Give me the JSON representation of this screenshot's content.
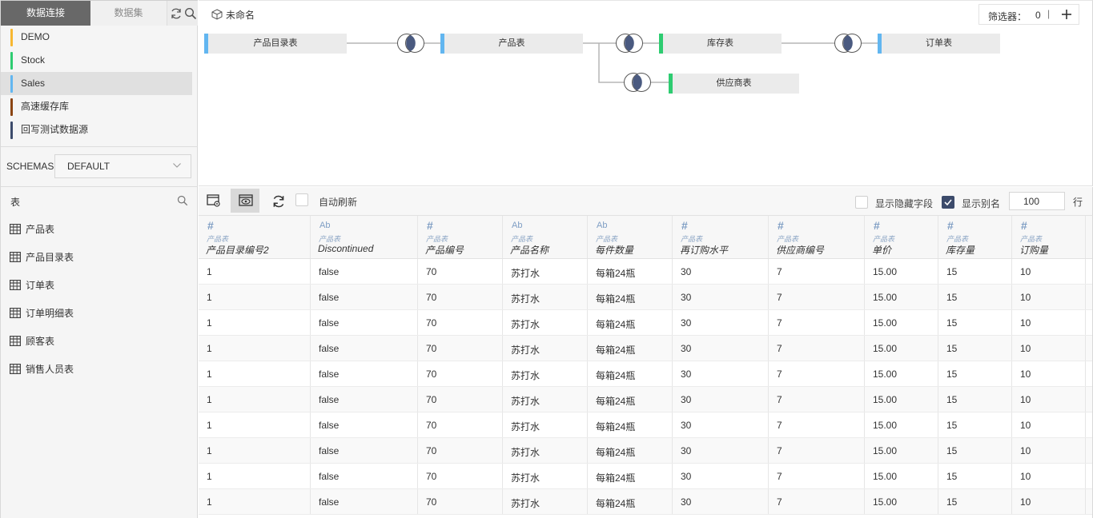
{
  "sidebar": {
    "tabs": [
      "数据连接",
      "数据集"
    ],
    "datasources": [
      {
        "name": "DEMO",
        "color": "#f7b731"
      },
      {
        "name": "Stock",
        "color": "#2ecc71"
      },
      {
        "name": "Sales",
        "color": "#62b6f0"
      },
      {
        "name": "高速缓存库",
        "color": "#8b4513"
      },
      {
        "name": "回写测试数据源",
        "color": "#3c4b6b"
      }
    ],
    "selected_datasource": "Sales",
    "schema_label": "SCHEMAS",
    "schema_value": "DEFAULT",
    "tables_label": "表",
    "tables": [
      "产品表",
      "产品目录表",
      "订单表",
      "订单明细表",
      "顾客表",
      "销售人员表"
    ]
  },
  "canvas": {
    "title": "未命名",
    "filter_label": "筛选器：",
    "filter_count": "0",
    "filter_sep": "|",
    "nodes": [
      {
        "id": "n1",
        "label": "产品目录表",
        "color": "#62b6f0"
      },
      {
        "id": "n2",
        "label": "产品表",
        "color": "#62b6f0"
      },
      {
        "id": "n3",
        "label": "库存表",
        "color": "#2ecc71"
      },
      {
        "id": "n4",
        "label": "订单表",
        "color": "#62b6f0"
      },
      {
        "id": "n5",
        "label": "供应商表",
        "color": "#2ecc71"
      }
    ]
  },
  "toolbar": {
    "auto_refresh_label": "自动刷新",
    "show_hidden_label": "显示隐藏字段",
    "show_alias_label": "显示别名",
    "rows_value": "100",
    "rows_unit": "行"
  },
  "grid": {
    "columns": [
      {
        "type": "#",
        "table": "产品表",
        "name": "产品目录编号2"
      },
      {
        "type": "Ab",
        "table": "产品表",
        "name": "Discontinued"
      },
      {
        "type": "#",
        "table": "产品表",
        "name": "产品编号"
      },
      {
        "type": "Ab",
        "table": "产品表",
        "name": "产品名称"
      },
      {
        "type": "Ab",
        "table": "产品表",
        "name": "每件数量"
      },
      {
        "type": "#",
        "table": "产品表",
        "name": "再订购水平"
      },
      {
        "type": "#",
        "table": "产品表",
        "name": "供应商编号"
      },
      {
        "type": "#",
        "table": "产品表",
        "name": "单价"
      },
      {
        "type": "#",
        "table": "产品表",
        "name": "库存量"
      },
      {
        "type": "#",
        "table": "产品表",
        "name": "订购量"
      }
    ],
    "rows": [
      [
        "1",
        "false",
        "70",
        "苏打水",
        "每箱24瓶",
        "30",
        "7",
        "15.00",
        "15",
        "10"
      ],
      [
        "1",
        "false",
        "70",
        "苏打水",
        "每箱24瓶",
        "30",
        "7",
        "15.00",
        "15",
        "10"
      ],
      [
        "1",
        "false",
        "70",
        "苏打水",
        "每箱24瓶",
        "30",
        "7",
        "15.00",
        "15",
        "10"
      ],
      [
        "1",
        "false",
        "70",
        "苏打水",
        "每箱24瓶",
        "30",
        "7",
        "15.00",
        "15",
        "10"
      ],
      [
        "1",
        "false",
        "70",
        "苏打水",
        "每箱24瓶",
        "30",
        "7",
        "15.00",
        "15",
        "10"
      ],
      [
        "1",
        "false",
        "70",
        "苏打水",
        "每箱24瓶",
        "30",
        "7",
        "15.00",
        "15",
        "10"
      ],
      [
        "1",
        "false",
        "70",
        "苏打水",
        "每箱24瓶",
        "30",
        "7",
        "15.00",
        "15",
        "10"
      ],
      [
        "1",
        "false",
        "70",
        "苏打水",
        "每箱24瓶",
        "30",
        "7",
        "15.00",
        "15",
        "10"
      ],
      [
        "1",
        "false",
        "70",
        "苏打水",
        "每箱24瓶",
        "30",
        "7",
        "15.00",
        "15",
        "10"
      ],
      [
        "1",
        "false",
        "70",
        "苏打水",
        "每箱24瓶",
        "30",
        "7",
        "15.00",
        "15",
        "10"
      ]
    ]
  }
}
